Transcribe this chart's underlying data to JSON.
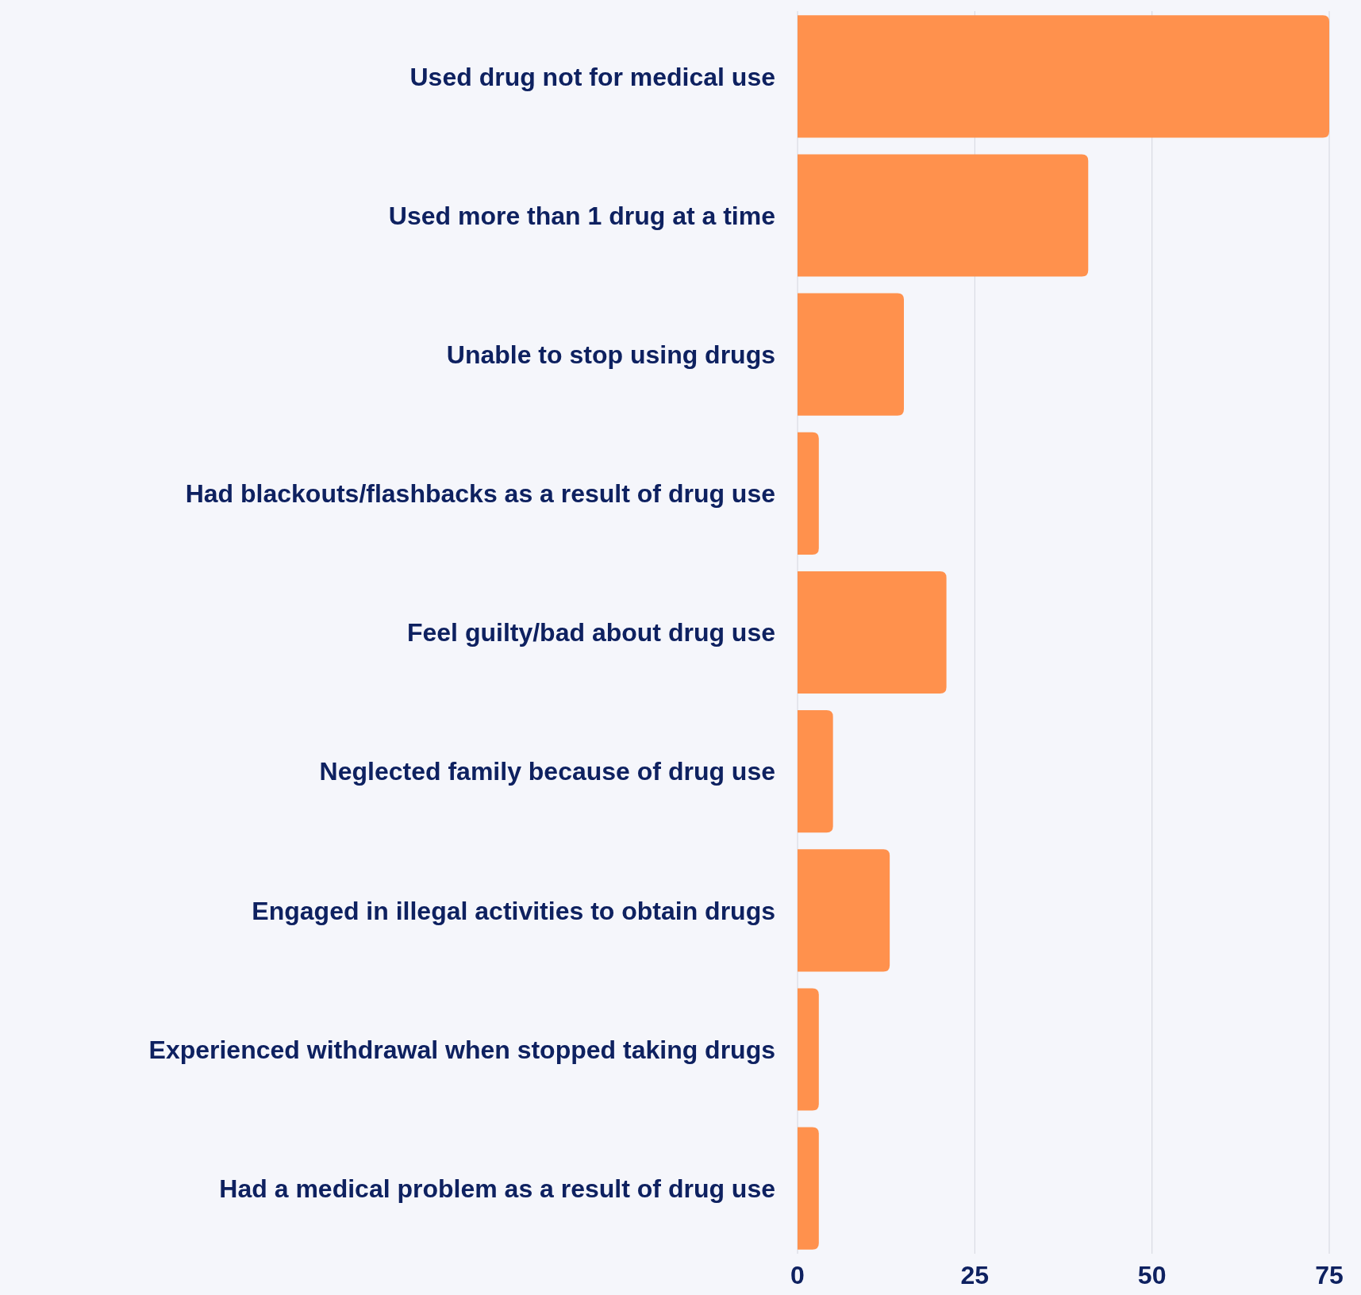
{
  "chart_data": {
    "type": "bar",
    "orientation": "horizontal",
    "categories": [
      "Used drug not for medical use",
      "Used more than 1 drug at a time",
      "Unable to stop using drugs",
      "Had blackouts/flashbacks as a result of drug use",
      "Feel guilty/bad about drug use",
      "Neglected family because of drug use",
      "Engaged in illegal activities to obtain drugs",
      "Experienced withdrawal when stopped taking drugs",
      "Had a medical problem as a result of drug use"
    ],
    "values": [
      75,
      41,
      15,
      3,
      21,
      5,
      13,
      3,
      3
    ],
    "color": "#ff914d",
    "xlim": [
      0,
      75
    ],
    "xticks": [
      0,
      25,
      50,
      75
    ],
    "grid": "x"
  }
}
